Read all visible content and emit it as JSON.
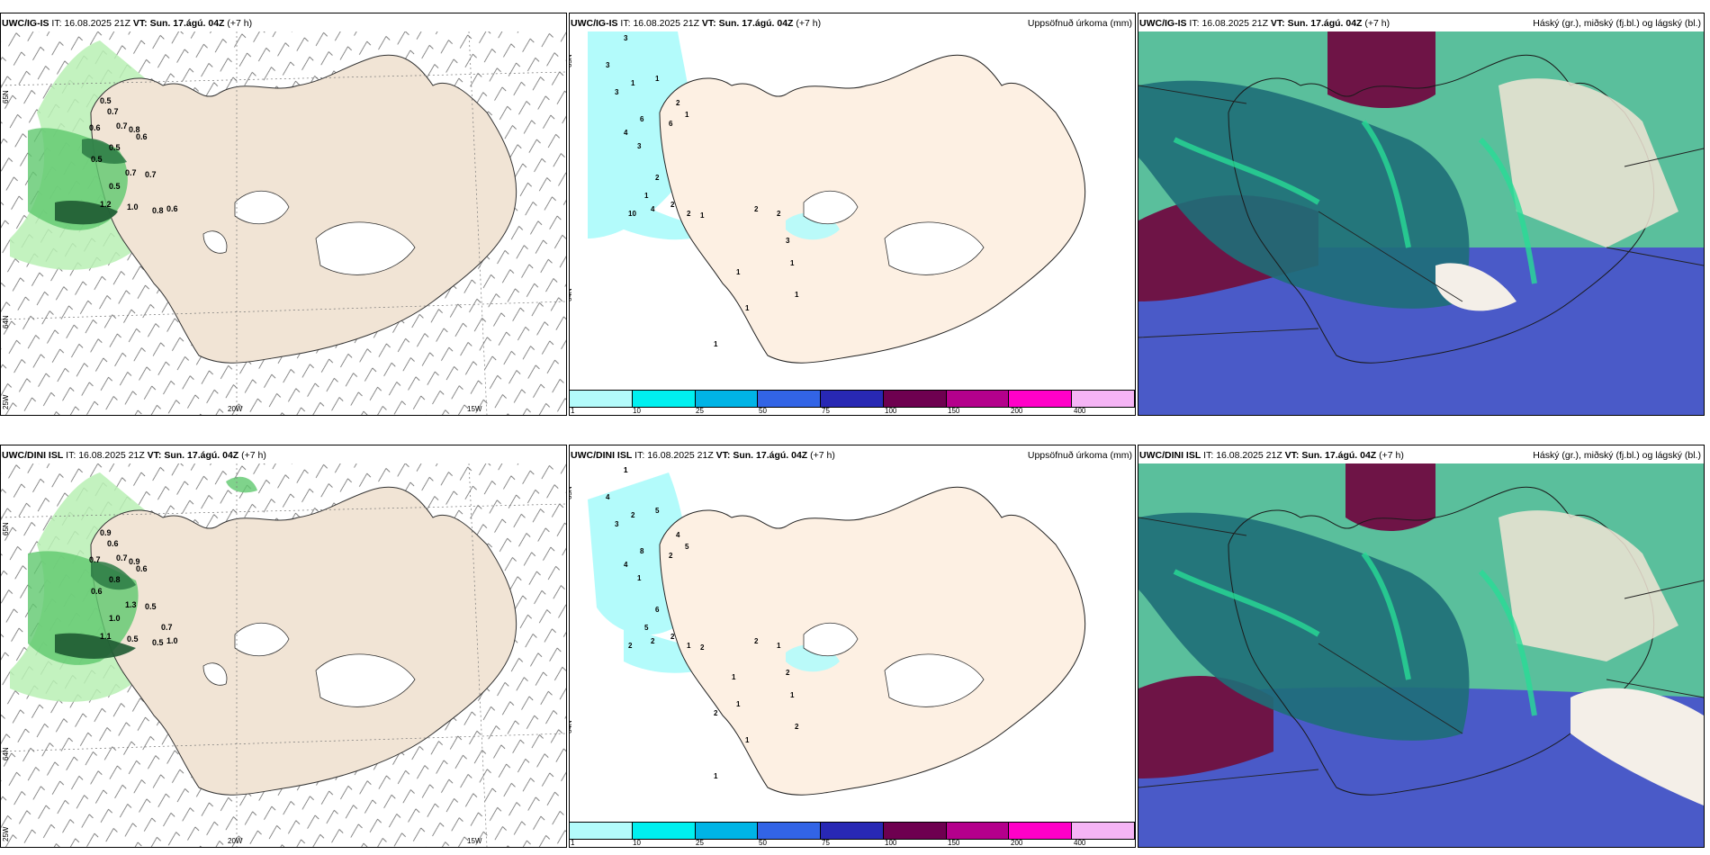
{
  "rows": [
    {
      "model": "UWC/IG-IS",
      "it_label": "IT:",
      "it_value": "16.08.2025 21Z",
      "vt_label": "VT:",
      "vt_value": "Sun. 17.ágú. 04Z",
      "lead": "(+7 h)",
      "precip_title": "Uppsöfnuð úrkoma (mm)",
      "cloud_title": "Háský (gr.), miðský (fj.bl.) og lágský (bl.)",
      "axis_lat_top": "65N",
      "axis_lat_bottom": "64N",
      "axis_lon_left": "20W",
      "axis_lon_right": "15W",
      "axis_lon_far": "25W",
      "wind_labels": [
        {
          "text": "0.5"
        },
        {
          "text": "0.7"
        },
        {
          "text": "0.6"
        },
        {
          "text": "0.7"
        },
        {
          "text": "0.8"
        },
        {
          "text": "0.6"
        },
        {
          "text": "0.5"
        },
        {
          "text": "0.5"
        },
        {
          "text": "0.7"
        },
        {
          "text": "0.7"
        },
        {
          "text": "0.5"
        },
        {
          "text": "1.2"
        },
        {
          "text": "1.0"
        },
        {
          "text": "0.8"
        },
        {
          "text": "0.6"
        }
      ],
      "precip_labels": [
        {
          "text": "3"
        },
        {
          "text": "3"
        },
        {
          "text": "3"
        },
        {
          "text": "1"
        },
        {
          "text": "2"
        },
        {
          "text": "1"
        },
        {
          "text": "6"
        },
        {
          "text": "4"
        },
        {
          "text": "1"
        },
        {
          "text": "6"
        },
        {
          "text": "3"
        },
        {
          "text": "2"
        },
        {
          "text": "1"
        },
        {
          "text": "10"
        },
        {
          "text": "4"
        },
        {
          "text": "2"
        },
        {
          "text": "2"
        },
        {
          "text": "1"
        },
        {
          "text": "2"
        },
        {
          "text": "3"
        },
        {
          "text": "2"
        },
        {
          "text": "1"
        },
        {
          "text": "1"
        },
        {
          "text": "1"
        },
        {
          "text": "1"
        },
        {
          "text": "1"
        }
      ]
    },
    {
      "model": "UWC/DINI ISL",
      "it_label": "IT:",
      "it_value": "16.08.2025 21Z",
      "vt_label": "VT:",
      "vt_value": "Sun. 17.ágú. 04Z",
      "lead": "(+7 h)",
      "precip_title": "Uppsöfnuð úrkoma (mm)",
      "cloud_title": "Háský (gr.), miðský (fj.bl.) og lágský (bl.)",
      "axis_lat_top": "65N",
      "axis_lat_bottom": "64N",
      "axis_lon_left": "20W",
      "axis_lon_right": "15W",
      "axis_lon_far": "25W",
      "wind_labels": [
        {
          "text": "0.9"
        },
        {
          "text": "0.6"
        },
        {
          "text": "0.7"
        },
        {
          "text": "0.7"
        },
        {
          "text": "0.9"
        },
        {
          "text": "0.6"
        },
        {
          "text": "0.8"
        },
        {
          "text": "0.6"
        },
        {
          "text": "1.3"
        },
        {
          "text": "0.5"
        },
        {
          "text": "1.0"
        },
        {
          "text": "1.1"
        },
        {
          "text": "0.5"
        },
        {
          "text": "0.5"
        },
        {
          "text": "1.0"
        },
        {
          "text": "0.7"
        }
      ],
      "precip_labels": [
        {
          "text": "1"
        },
        {
          "text": "4"
        },
        {
          "text": "3"
        },
        {
          "text": "2"
        },
        {
          "text": "4"
        },
        {
          "text": "5"
        },
        {
          "text": "8"
        },
        {
          "text": "4"
        },
        {
          "text": "5"
        },
        {
          "text": "2"
        },
        {
          "text": "1"
        },
        {
          "text": "6"
        },
        {
          "text": "5"
        },
        {
          "text": "2"
        },
        {
          "text": "2"
        },
        {
          "text": "2"
        },
        {
          "text": "1"
        },
        {
          "text": "2"
        },
        {
          "text": "2"
        },
        {
          "text": "2"
        },
        {
          "text": "1"
        },
        {
          "text": "1"
        },
        {
          "text": "1"
        },
        {
          "text": "2"
        },
        {
          "text": "1"
        },
        {
          "text": "1"
        },
        {
          "text": "2"
        },
        {
          "text": "1"
        },
        {
          "text": "1"
        }
      ]
    }
  ],
  "colorbar": {
    "colors": [
      "#b3fbfb",
      "#00f0f0",
      "#00b4e6",
      "#3264e6",
      "#2828b4",
      "#6e0050",
      "#b4008c",
      "#ff00c8",
      "#f5b4f5"
    ],
    "labels": [
      "1",
      "10",
      "25",
      "50",
      "75",
      "100",
      "150",
      "200",
      "400"
    ]
  },
  "colors": {
    "land": "#f1e4d5",
    "land_precip": "#fdf0e3",
    "wind_green_light": "#b9f0b4",
    "wind_green_mid": "#5fc86e",
    "wind_green_dark": "#1e5a32",
    "precip_cyan": "#b3fbfb",
    "cloud_high": "#6e1446",
    "cloud_mid": "#1e6e78",
    "cloud_low": "#4a5ac8",
    "cloud_green": "#28dc96"
  }
}
